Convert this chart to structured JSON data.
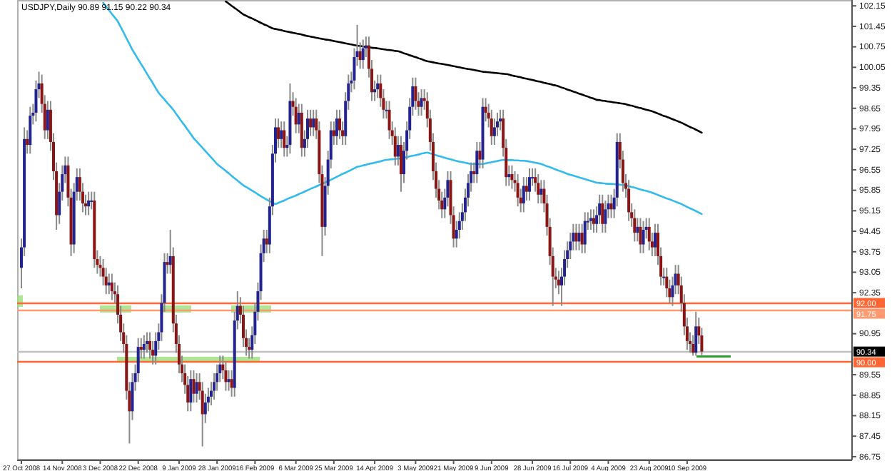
{
  "chart_data": {
    "type": "candlestick",
    "title": "USDJPY,Daily  90.89 91.15 90.22 90.34",
    "categories": [
      "27 Oct 2008",
      null,
      null,
      null,
      null,
      null,
      null,
      null,
      null,
      null,
      null,
      null,
      null,
      null,
      "14 Nov 2008",
      null,
      null,
      null,
      null,
      null,
      null,
      null,
      null,
      null,
      null,
      null,
      null,
      "3 Dec 2008",
      null,
      null,
      null,
      null,
      null,
      null,
      null,
      null,
      null,
      null,
      null,
      null,
      "22 Dec 2008",
      null,
      null,
      null,
      null,
      null,
      null,
      null,
      null,
      null,
      null,
      null,
      null,
      null,
      "9 Jan 2009",
      null,
      null,
      null,
      null,
      null,
      null,
      null,
      null,
      null,
      null,
      null,
      null,
      "28 Jan 2009",
      null,
      null,
      null,
      null,
      null,
      null,
      null,
      null,
      null,
      null,
      null,
      null,
      "16 Feb 2009",
      null,
      null,
      null,
      null,
      null,
      null,
      null,
      null,
      null,
      null,
      null,
      null,
      null,
      "6 Mar 2009",
      null,
      null,
      null,
      null,
      null,
      null,
      null,
      null,
      null,
      null,
      null,
      null,
      "25 Mar 2009",
      null,
      null,
      null,
      null,
      null,
      null,
      null,
      null,
      null,
      null,
      null,
      null,
      null,
      "14 Apr 2009",
      null,
      null,
      null,
      null,
      null,
      null,
      null,
      null,
      null,
      null,
      null,
      null,
      null,
      "3 May 2009",
      null,
      null,
      null,
      null,
      null,
      null,
      null,
      null,
      null,
      null,
      null,
      null,
      "21 May 2009",
      null,
      null,
      null,
      null,
      null,
      null,
      null,
      null,
      null,
      null,
      null,
      null,
      "9 Jun 2009",
      null,
      null,
      null,
      null,
      null,
      null,
      null,
      null,
      null,
      null,
      null,
      null,
      null,
      "28 Jun 2009",
      null,
      null,
      null,
      null,
      null,
      null,
      null,
      null,
      null,
      null,
      null,
      null,
      "16 Jul 2009",
      null,
      null,
      null,
      null,
      null,
      null,
      null,
      null,
      null,
      null,
      null,
      null,
      "4 Aug 2009",
      null,
      null,
      null,
      null,
      null,
      null,
      null,
      null,
      null,
      null,
      null,
      null,
      null,
      "23 Aug 2009",
      null,
      null,
      null,
      null,
      null,
      null,
      null,
      null,
      null,
      null,
      null,
      null,
      "10 Sep 2009",
      null,
      null,
      null,
      null,
      null
    ],
    "ylim": [
      86.65,
      102.35
    ],
    "yticks": [
      102.15,
      101.45,
      100.75,
      100.05,
      99.35,
      98.65,
      97.95,
      97.25,
      96.55,
      95.85,
      95.15,
      94.45,
      93.75,
      93.05,
      92.35,
      90.95,
      89.55,
      88.85,
      88.15,
      87.45,
      86.75
    ],
    "grid": false,
    "ohlc": [
      [
        93.2,
        94.2,
        92.5,
        93.9
      ],
      [
        93.9,
        98.0,
        93.6,
        97.6
      ],
      [
        97.6,
        97.9,
        97.1,
        97.4
      ],
      [
        97.4,
        98.7,
        97.1,
        98.4
      ],
      [
        98.4,
        98.8,
        98.1,
        98.5
      ],
      [
        98.5,
        99.6,
        98.2,
        99.3
      ],
      [
        99.3,
        99.9,
        99.0,
        99.5
      ],
      [
        99.5,
        99.8,
        98.5,
        98.8
      ],
      [
        98.8,
        99.1,
        97.6,
        97.9
      ],
      [
        97.9,
        98.9,
        97.6,
        98.6
      ],
      [
        98.6,
        98.9,
        97.2,
        97.5
      ],
      [
        97.5,
        97.8,
        96.2,
        96.5
      ],
      [
        96.5,
        96.8,
        94.5,
        95.0
      ],
      [
        95.0,
        96.1,
        94.7,
        95.8
      ],
      [
        95.8,
        96.7,
        95.5,
        96.4
      ],
      [
        96.4,
        97.0,
        96.1,
        96.7
      ],
      [
        96.7,
        97.0,
        95.3,
        95.6
      ],
      [
        95.6,
        95.9,
        93.6,
        94.0
      ],
      [
        94.0,
        96.1,
        93.7,
        95.8
      ],
      [
        95.8,
        96.6,
        95.5,
        96.3
      ],
      [
        96.3,
        96.6,
        95.5,
        95.8
      ],
      [
        95.8,
        96.1,
        95.1,
        95.4
      ],
      [
        95.4,
        95.7,
        95.0,
        95.3
      ],
      [
        95.3,
        95.8,
        95.0,
        95.5
      ],
      [
        95.5,
        95.8,
        95.2,
        95.5
      ],
      [
        95.5,
        95.8,
        93.2,
        93.5
      ],
      [
        93.5,
        93.8,
        93.0,
        93.3
      ],
      [
        93.3,
        93.6,
        92.9,
        93.2
      ],
      [
        93.2,
        93.5,
        92.6,
        92.9
      ],
      [
        92.9,
        93.2,
        92.3,
        92.6
      ],
      [
        92.6,
        93.0,
        92.3,
        92.7
      ],
      [
        92.7,
        93.0,
        92.1,
        92.4
      ],
      [
        92.4,
        92.7,
        92.0,
        92.3
      ],
      [
        92.3,
        92.6,
        91.3,
        91.6
      ],
      [
        91.6,
        91.9,
        90.7,
        91.0
      ],
      [
        91.0,
        91.3,
        90.3,
        90.6
      ],
      [
        90.6,
        90.9,
        88.7,
        89.0
      ],
      [
        89.0,
        89.3,
        87.2,
        88.3
      ],
      [
        88.3,
        89.6,
        88.0,
        89.3
      ],
      [
        89.3,
        89.9,
        89.0,
        89.6
      ],
      [
        89.6,
        90.8,
        89.3,
        90.5
      ],
      [
        90.5,
        90.8,
        90.1,
        90.4
      ],
      [
        90.4,
        90.9,
        90.1,
        90.6
      ],
      [
        90.6,
        91.0,
        90.3,
        90.7
      ],
      [
        90.7,
        91.0,
        90.1,
        90.4
      ],
      [
        90.4,
        90.7,
        89.9,
        90.2
      ],
      [
        90.2,
        91.0,
        89.9,
        90.7
      ],
      [
        90.7,
        91.3,
        90.4,
        91.0
      ],
      [
        91.0,
        92.3,
        90.7,
        92.0
      ],
      [
        92.0,
        93.7,
        91.7,
        93.4
      ],
      [
        93.4,
        93.7,
        93.0,
        93.3
      ],
      [
        93.3,
        94.5,
        93.0,
        93.6
      ],
      [
        93.6,
        93.9,
        91.0,
        91.3
      ],
      [
        91.3,
        91.6,
        90.3,
        90.6
      ],
      [
        90.6,
        90.9,
        89.6,
        89.9
      ],
      [
        89.9,
        90.2,
        89.3,
        89.6
      ],
      [
        89.6,
        89.9,
        88.9,
        89.2
      ],
      [
        89.2,
        89.5,
        88.3,
        88.6
      ],
      [
        88.6,
        89.7,
        88.3,
        89.4
      ],
      [
        89.4,
        89.7,
        88.6,
        88.9
      ],
      [
        88.9,
        89.6,
        88.6,
        89.3
      ],
      [
        89.3,
        89.6,
        88.7,
        89.0
      ],
      [
        89.0,
        89.3,
        87.1,
        88.2
      ],
      [
        88.2,
        88.9,
        87.9,
        88.6
      ],
      [
        88.6,
        89.1,
        88.3,
        88.8
      ],
      [
        88.8,
        89.3,
        88.5,
        89.0
      ],
      [
        89.0,
        89.6,
        88.7,
        89.3
      ],
      [
        89.3,
        89.9,
        89.0,
        89.6
      ],
      [
        89.6,
        90.2,
        89.3,
        89.9
      ],
      [
        89.9,
        90.2,
        89.4,
        89.7
      ],
      [
        89.7,
        90.0,
        89.0,
        89.3
      ],
      [
        89.3,
        89.7,
        89.0,
        89.4
      ],
      [
        89.4,
        89.7,
        88.8,
        89.1
      ],
      [
        89.1,
        91.7,
        88.8,
        91.4
      ],
      [
        91.4,
        92.4,
        91.1,
        91.9
      ],
      [
        91.9,
        92.2,
        91.3,
        91.6
      ],
      [
        91.6,
        91.9,
        90.5,
        90.8
      ],
      [
        90.8,
        91.1,
        90.2,
        90.5
      ],
      [
        90.5,
        90.8,
        90.1,
        90.4
      ],
      [
        90.4,
        91.2,
        90.1,
        90.9
      ],
      [
        90.9,
        92.0,
        90.6,
        91.7
      ],
      [
        91.7,
        92.7,
        91.4,
        92.4
      ],
      [
        92.4,
        94.0,
        92.1,
        93.7
      ],
      [
        93.7,
        94.5,
        93.4,
        94.2
      ],
      [
        94.2,
        94.5,
        93.7,
        94.0
      ],
      [
        94.0,
        95.6,
        93.7,
        95.3
      ],
      [
        95.3,
        97.4,
        95.0,
        97.1
      ],
      [
        97.1,
        98.3,
        96.8,
        98.0
      ],
      [
        98.0,
        98.3,
        97.3,
        97.6
      ],
      [
        97.6,
        98.2,
        97.3,
        97.9
      ],
      [
        97.9,
        98.2,
        97.0,
        97.3
      ],
      [
        97.3,
        97.7,
        97.0,
        97.4
      ],
      [
        97.4,
        99.5,
        97.1,
        98.9
      ],
      [
        98.9,
        99.2,
        98.4,
        98.7
      ],
      [
        98.7,
        99.0,
        97.8,
        98.1
      ],
      [
        98.1,
        98.8,
        97.8,
        98.5
      ],
      [
        98.5,
        98.8,
        97.0,
        97.3
      ],
      [
        97.3,
        97.9,
        97.0,
        97.6
      ],
      [
        97.6,
        98.6,
        97.3,
        98.3
      ],
      [
        98.3,
        98.6,
        97.7,
        98.0
      ],
      [
        98.0,
        98.6,
        97.7,
        98.3
      ],
      [
        98.3,
        98.6,
        97.6,
        97.9
      ],
      [
        97.9,
        98.2,
        96.1,
        96.4
      ],
      [
        96.4,
        96.7,
        93.6,
        94.6
      ],
      [
        94.6,
        96.3,
        94.3,
        96.0
      ],
      [
        96.0,
        97.2,
        95.7,
        96.9
      ],
      [
        96.9,
        98.2,
        96.6,
        97.9
      ],
      [
        97.9,
        98.2,
        97.4,
        97.7
      ],
      [
        97.7,
        98.6,
        97.4,
        98.3
      ],
      [
        98.3,
        98.6,
        97.6,
        97.9
      ],
      [
        97.9,
        98.2,
        97.4,
        97.7
      ],
      [
        97.7,
        99.2,
        97.4,
        98.9
      ],
      [
        98.9,
        99.8,
        98.6,
        99.5
      ],
      [
        99.5,
        99.9,
        99.2,
        99.6
      ],
      [
        99.6,
        100.7,
        99.3,
        100.4
      ],
      [
        100.4,
        101.5,
        100.1,
        100.6
      ],
      [
        100.6,
        100.9,
        100.0,
        100.3
      ],
      [
        100.3,
        101.0,
        100.0,
        100.7
      ],
      [
        100.7,
        101.1,
        100.4,
        100.8
      ],
      [
        100.8,
        101.1,
        99.7,
        100.0
      ],
      [
        100.0,
        100.3,
        98.9,
        99.2
      ],
      [
        99.2,
        99.6,
        98.9,
        99.3
      ],
      [
        99.3,
        99.8,
        99.0,
        99.5
      ],
      [
        99.5,
        99.8,
        98.7,
        99.0
      ],
      [
        99.0,
        99.3,
        98.3,
        98.6
      ],
      [
        98.6,
        98.9,
        98.3,
        98.6
      ],
      [
        98.6,
        98.9,
        97.6,
        97.9
      ],
      [
        97.9,
        98.2,
        97.4,
        97.7
      ],
      [
        97.7,
        98.0,
        96.7,
        97.0
      ],
      [
        97.0,
        97.7,
        96.7,
        97.4
      ],
      [
        97.4,
        97.7,
        95.8,
        96.4
      ],
      [
        96.4,
        97.5,
        96.1,
        97.2
      ],
      [
        97.2,
        98.2,
        96.9,
        97.9
      ],
      [
        97.9,
        99.0,
        97.6,
        98.7
      ],
      [
        98.7,
        99.7,
        98.4,
        99.4
      ],
      [
        99.4,
        99.7,
        98.6,
        98.9
      ],
      [
        98.9,
        99.2,
        98.4,
        98.7
      ],
      [
        98.7,
        99.3,
        98.4,
        99.0
      ],
      [
        99.0,
        99.3,
        98.6,
        98.9
      ],
      [
        98.9,
        99.2,
        98.0,
        98.3
      ],
      [
        98.3,
        98.6,
        97.2,
        97.5
      ],
      [
        97.5,
        97.8,
        96.2,
        96.5
      ],
      [
        96.5,
        96.8,
        95.6,
        95.9
      ],
      [
        95.9,
        96.2,
        95.2,
        95.5
      ],
      [
        95.5,
        95.8,
        94.9,
        95.2
      ],
      [
        95.2,
        95.9,
        94.9,
        95.6
      ],
      [
        95.6,
        96.5,
        95.3,
        96.2
      ],
      [
        96.2,
        96.5,
        94.7,
        95.0
      ],
      [
        95.0,
        95.3,
        93.9,
        94.2
      ],
      [
        94.2,
        94.8,
        93.9,
        94.5
      ],
      [
        94.5,
        95.1,
        94.2,
        94.8
      ],
      [
        94.8,
        95.4,
        94.5,
        95.1
      ],
      [
        95.1,
        95.9,
        94.8,
        95.6
      ],
      [
        95.6,
        96.4,
        95.3,
        96.1
      ],
      [
        96.1,
        96.8,
        95.8,
        96.5
      ],
      [
        96.5,
        96.8,
        96.1,
        96.4
      ],
      [
        96.4,
        97.5,
        96.1,
        97.2
      ],
      [
        97.2,
        97.5,
        96.6,
        96.9
      ],
      [
        96.9,
        99.0,
        96.6,
        98.7
      ],
      [
        98.7,
        99.0,
        98.2,
        98.5
      ],
      [
        98.5,
        98.8,
        98.0,
        98.3
      ],
      [
        98.3,
        98.6,
        97.4,
        97.7
      ],
      [
        97.7,
        98.3,
        97.4,
        98.0
      ],
      [
        98.0,
        98.5,
        97.7,
        98.2
      ],
      [
        98.2,
        98.6,
        97.9,
        98.3
      ],
      [
        98.3,
        98.6,
        97.0,
        97.3
      ],
      [
        97.3,
        97.6,
        96.0,
        96.3
      ],
      [
        96.3,
        96.7,
        96.0,
        96.4
      ],
      [
        96.4,
        96.7,
        95.9,
        96.2
      ],
      [
        96.2,
        96.5,
        95.8,
        96.1
      ],
      [
        96.1,
        96.4,
        95.3,
        95.6
      ],
      [
        95.6,
        95.9,
        95.1,
        95.4
      ],
      [
        95.4,
        96.3,
        95.1,
        96.0
      ],
      [
        96.0,
        96.3,
        95.5,
        95.8
      ],
      [
        95.8,
        96.6,
        95.5,
        96.3
      ],
      [
        96.3,
        96.6,
        96.0,
        96.3
      ],
      [
        96.3,
        96.6,
        95.8,
        96.1
      ],
      [
        96.1,
        96.4,
        95.4,
        95.7
      ],
      [
        95.7,
        96.2,
        95.4,
        95.9
      ],
      [
        95.9,
        96.2,
        95.1,
        95.4
      ],
      [
        95.4,
        95.7,
        94.3,
        94.6
      ],
      [
        94.6,
        94.9,
        93.3,
        93.6
      ],
      [
        93.6,
        93.9,
        91.9,
        92.9
      ],
      [
        92.9,
        93.2,
        92.5,
        92.8
      ],
      [
        92.8,
        93.1,
        92.3,
        92.6
      ],
      [
        92.6,
        93.2,
        91.9,
        92.9
      ],
      [
        92.9,
        93.8,
        92.6,
        93.5
      ],
      [
        93.5,
        94.1,
        93.2,
        93.8
      ],
      [
        93.8,
        94.4,
        93.5,
        94.1
      ],
      [
        94.1,
        94.7,
        93.8,
        94.4
      ],
      [
        94.4,
        94.7,
        93.8,
        94.1
      ],
      [
        94.1,
        94.7,
        93.8,
        94.4
      ],
      [
        94.4,
        94.7,
        93.7,
        94.0
      ],
      [
        94.0,
        95.1,
        93.7,
        94.8
      ],
      [
        94.8,
        95.1,
        94.5,
        94.8
      ],
      [
        94.8,
        95.2,
        94.5,
        94.9
      ],
      [
        94.9,
        95.2,
        94.4,
        94.7
      ],
      [
        94.7,
        95.3,
        94.4,
        95.0
      ],
      [
        95.0,
        95.7,
        94.7,
        95.4
      ],
      [
        95.4,
        95.7,
        94.4,
        94.7
      ],
      [
        94.7,
        95.5,
        94.4,
        95.2
      ],
      [
        95.2,
        95.7,
        94.9,
        95.4
      ],
      [
        95.4,
        95.7,
        94.9,
        95.2
      ],
      [
        95.2,
        95.9,
        94.9,
        95.6
      ],
      [
        95.6,
        97.8,
        95.3,
        97.5
      ],
      [
        97.5,
        97.8,
        96.6,
        96.9
      ],
      [
        96.9,
        97.2,
        95.8,
        96.1
      ],
      [
        96.1,
        96.4,
        95.6,
        95.9
      ],
      [
        95.9,
        96.2,
        94.8,
        95.1
      ],
      [
        95.1,
        95.4,
        94.6,
        94.9
      ],
      [
        94.9,
        95.2,
        94.1,
        94.4
      ],
      [
        94.4,
        94.9,
        94.1,
        94.6
      ],
      [
        94.6,
        94.9,
        93.7,
        94.0
      ],
      [
        94.0,
        94.8,
        93.7,
        94.5
      ],
      [
        94.5,
        94.9,
        94.2,
        94.6
      ],
      [
        94.6,
        94.9,
        93.8,
        94.1
      ],
      [
        94.1,
        94.4,
        93.6,
        93.9
      ],
      [
        93.9,
        94.7,
        93.6,
        94.4
      ],
      [
        94.4,
        94.7,
        93.3,
        93.6
      ],
      [
        93.6,
        93.9,
        92.6,
        92.9
      ],
      [
        92.9,
        93.2,
        92.6,
        92.9
      ],
      [
        92.9,
        93.2,
        92.2,
        92.5
      ],
      [
        92.5,
        92.8,
        92.0,
        92.2
      ],
      [
        92.2,
        92.9,
        91.9,
        92.6
      ],
      [
        92.6,
        93.3,
        92.3,
        93.0
      ],
      [
        93.0,
        93.3,
        92.3,
        92.6
      ],
      [
        92.6,
        92.9,
        91.7,
        92.0
      ],
      [
        92.0,
        92.3,
        90.9,
        91.2
      ],
      [
        91.2,
        91.5,
        90.4,
        90.7
      ],
      [
        90.7,
        91.0,
        90.3,
        90.6
      ],
      [
        90.6,
        90.9,
        90.2,
        90.3
      ],
      [
        90.3,
        91.7,
        90.2,
        91.2
      ],
      [
        91.2,
        91.5,
        90.6,
        90.89
      ],
      [
        90.89,
        91.15,
        90.22,
        90.34
      ]
    ],
    "series": [
      {
        "type": "line",
        "color": "#000000",
        "values": [
          null,
          null,
          null,
          null,
          null,
          null,
          null,
          null,
          null,
          null,
          null,
          null,
          null,
          null,
          null,
          null,
          null,
          null,
          null,
          null,
          null,
          null,
          null,
          null,
          null,
          null,
          null,
          null,
          null,
          null,
          null,
          null,
          null,
          null,
          null,
          null,
          null,
          null,
          null,
          null,
          null,
          null,
          null,
          null,
          null,
          null,
          null,
          null,
          null,
          null,
          null,
          null,
          null,
          null,
          null,
          null,
          null,
          null,
          null,
          null,
          null,
          null,
          null,
          null,
          null,
          null,
          null,
          null,
          null,
          null,
          102.3,
          102.23,
          102.15,
          102.08,
          102.01,
          101.93,
          101.86,
          101.81,
          101.76,
          101.72,
          101.67,
          101.62,
          101.57,
          101.52,
          101.48,
          101.43,
          101.38,
          101.36,
          101.34,
          101.32,
          101.29,
          101.27,
          101.25,
          101.23,
          101.21,
          101.19,
          101.17,
          101.14,
          101.12,
          101.1,
          101.08,
          101.06,
          101.04,
          101.02,
          101.0,
          100.99,
          100.97,
          100.95,
          100.93,
          100.91,
          100.89,
          100.87,
          100.85,
          100.83,
          100.81,
          100.79,
          100.78,
          100.76,
          100.75,
          100.74,
          100.72,
          100.71,
          100.7,
          100.68,
          100.67,
          100.65,
          100.64,
          100.63,
          100.61,
          100.6,
          100.57,
          100.53,
          100.5,
          100.46,
          100.43,
          100.4,
          100.36,
          100.33,
          100.29,
          100.26,
          100.24,
          100.22,
          100.2,
          100.18,
          100.17,
          100.15,
          100.13,
          100.11,
          100.09,
          100.07,
          100.05,
          100.03,
          100.01,
          99.99,
          99.98,
          99.96,
          99.94,
          99.92,
          99.9,
          99.89,
          99.88,
          99.87,
          99.86,
          99.85,
          99.84,
          99.83,
          99.82,
          99.8,
          99.77,
          99.75,
          99.73,
          99.71,
          99.68,
          99.66,
          99.64,
          99.62,
          99.59,
          99.57,
          99.55,
          99.52,
          99.5,
          99.48,
          99.45,
          99.43,
          99.4,
          99.36,
          99.33,
          99.29,
          99.26,
          99.22,
          99.19,
          99.15,
          99.12,
          99.08,
          99.05,
          99.01,
          98.98,
          98.94,
          98.93,
          98.91,
          98.9,
          98.88,
          98.87,
          98.85,
          98.84,
          98.82,
          98.81,
          98.79,
          98.76,
          98.74,
          98.71,
          98.68,
          98.66,
          98.63,
          98.6,
          98.58,
          98.55,
          98.51,
          98.47,
          98.43,
          98.39,
          98.36,
          98.32,
          98.28,
          98.24,
          98.2,
          98.16,
          98.11,
          98.06,
          98.01,
          97.97,
          97.92,
          97.87,
          97.82
        ]
      },
      {
        "type": "line",
        "color": "#33bbee",
        "values": [
          null,
          null,
          null,
          null,
          null,
          null,
          null,
          null,
          null,
          null,
          null,
          null,
          null,
          null,
          null,
          null,
          null,
          null,
          null,
          null,
          null,
          null,
          null,
          null,
          null,
          null,
          null,
          null,
          102.25,
          102.12,
          102.0,
          101.87,
          101.75,
          101.62,
          101.43,
          101.24,
          101.04,
          100.85,
          100.65,
          100.49,
          100.32,
          100.16,
          100.0,
          99.83,
          99.67,
          99.51,
          99.34,
          99.18,
          99.06,
          98.95,
          98.83,
          98.72,
          98.6,
          98.46,
          98.32,
          98.18,
          98.05,
          97.91,
          97.77,
          97.63,
          97.52,
          97.41,
          97.3,
          97.19,
          97.08,
          96.97,
          96.86,
          96.75,
          96.67,
          96.59,
          96.51,
          96.43,
          96.34,
          96.26,
          96.18,
          96.1,
          96.02,
          95.96,
          95.9,
          95.84,
          95.78,
          95.71,
          95.65,
          95.59,
          95.53,
          95.48,
          95.43,
          95.38,
          95.42,
          95.46,
          95.5,
          95.55,
          95.59,
          95.63,
          95.67,
          95.72,
          95.76,
          95.81,
          95.85,
          95.9,
          95.94,
          95.98,
          96.03,
          96.07,
          96.12,
          96.16,
          96.21,
          96.26,
          96.31,
          96.36,
          96.41,
          96.45,
          96.5,
          96.55,
          96.6,
          96.65,
          96.67,
          96.7,
          96.72,
          96.75,
          96.77,
          96.79,
          96.82,
          96.84,
          96.87,
          96.89,
          96.9,
          96.91,
          96.92,
          96.93,
          96.94,
          96.96,
          96.98,
          97.01,
          97.03,
          97.05,
          97.07,
          97.1,
          97.12,
          97.14,
          97.11,
          97.08,
          97.05,
          97.02,
          96.99,
          96.96,
          96.93,
          96.91,
          96.88,
          96.85,
          96.83,
          96.81,
          96.79,
          96.77,
          96.75,
          96.75,
          96.75,
          96.75,
          96.75,
          96.77,
          96.79,
          96.81,
          96.83,
          96.85,
          96.87,
          96.89,
          96.89,
          96.88,
          96.88,
          96.87,
          96.87,
          96.86,
          96.86,
          96.85,
          96.83,
          96.81,
          96.79,
          96.77,
          96.75,
          96.71,
          96.67,
          96.64,
          96.6,
          96.56,
          96.52,
          96.49,
          96.45,
          96.41,
          96.38,
          96.35,
          96.32,
          96.29,
          96.26,
          96.23,
          96.2,
          96.17,
          96.14,
          96.11,
          96.1,
          96.09,
          96.08,
          96.07,
          96.07,
          96.06,
          96.05,
          96.04,
          96.03,
          96.02,
          95.99,
          95.96,
          95.94,
          95.91,
          95.88,
          95.85,
          95.83,
          95.8,
          95.77,
          95.73,
          95.69,
          95.65,
          95.61,
          95.57,
          95.54,
          95.5,
          95.46,
          95.42,
          95.38,
          95.33,
          95.28,
          95.23,
          95.19,
          95.14,
          95.09,
          95.04
        ]
      }
    ],
    "ref_lines": [
      {
        "axis": "y",
        "value": 92.0,
        "label": "92.00",
        "color": "#ff6633"
      },
      {
        "axis": "y",
        "value": 91.75,
        "label": "91.75",
        "color": "#ff9970"
      },
      {
        "axis": "y",
        "value": 90.34,
        "label": "90.34",
        "color": "#c0c0c0"
      },
      {
        "axis": "y",
        "value": 90.0,
        "label": "90.00",
        "color": "#ff6633"
      }
    ]
  }
}
